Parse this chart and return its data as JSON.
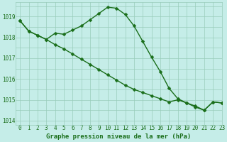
{
  "title": "Graphe pression niveau de la mer (hPa)",
  "xlim": [
    -0.5,
    23
  ],
  "ylim": [
    1013.8,
    1019.7
  ],
  "yticks": [
    1014,
    1015,
    1016,
    1017,
    1018,
    1019
  ],
  "xticks": [
    0,
    1,
    2,
    3,
    4,
    5,
    6,
    7,
    8,
    9,
    10,
    11,
    12,
    13,
    14,
    15,
    16,
    17,
    18,
    19,
    20,
    21,
    22,
    23
  ],
  "background_color": "#c5ede8",
  "grid_color": "#99ccbb",
  "line_color": "#1a6e1a",
  "series1": [
    1018.8,
    1018.3,
    1018.1,
    1017.9,
    1018.2,
    1018.15,
    1018.35,
    1018.55,
    1018.85,
    1019.15,
    1019.45,
    1019.4,
    1019.1,
    1018.55,
    1017.8,
    1017.05,
    1016.35,
    1015.55,
    1015.05,
    1014.85,
    1014.65,
    1014.5,
    1014.9,
    1014.85
  ],
  "series2": [
    1018.8,
    1018.3,
    1018.1,
    1017.9,
    1017.65,
    1017.45,
    1017.2,
    1016.95,
    1016.7,
    1016.45,
    1016.2,
    1015.95,
    1015.7,
    1015.5,
    1015.35,
    1015.2,
    1015.05,
    1014.9,
    1015.0,
    1014.85,
    1014.7,
    1014.5,
    1014.9,
    1014.85
  ],
  "marker": "D",
  "markersize": 2.5,
  "linewidth": 1.0,
  "title_fontsize": 6.5,
  "tick_fontsize": 5.5
}
